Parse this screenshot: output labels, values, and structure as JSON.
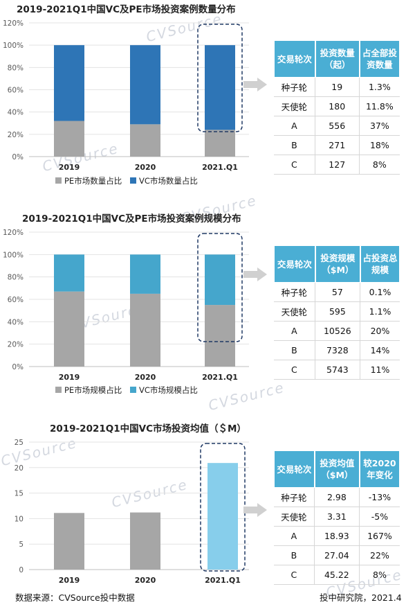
{
  "watermark": "CVSource",
  "chart_data": [
    {
      "type": "bar",
      "stacked": true,
      "title": "2019-2021Q1中国VC及PE市场投资案例数量分布",
      "categories": [
        "2019",
        "2020",
        "2021.Q1"
      ],
      "series": [
        {
          "name": "PE市场数量占比",
          "values": [
            32,
            29,
            24
          ],
          "color": "#a6a6a6"
        },
        {
          "name": "VC市场数量占比",
          "values": [
            68,
            71,
            76
          ],
          "color": "#2e75b6"
        }
      ],
      "ylim": [
        0,
        120
      ],
      "yticks": [
        "0%",
        "20%",
        "40%",
        "60%",
        "80%",
        "100%",
        "120%"
      ],
      "grid": true,
      "legend": "bottom",
      "highlight_category": "2021.Q1"
    },
    {
      "type": "bar",
      "stacked": true,
      "title": "2019-2021Q1中国VC及PE市场投资案例规模分布",
      "categories": [
        "2019",
        "2020",
        "2021.Q1"
      ],
      "series": [
        {
          "name": "PE市场规模占比",
          "values": [
            67,
            65,
            55
          ],
          "color": "#a6a6a6"
        },
        {
          "name": "VC市场规模占比",
          "values": [
            33,
            35,
            45
          ],
          "color": "#45a6cc"
        }
      ],
      "ylim": [
        0,
        120
      ],
      "yticks": [
        "0%",
        "20%",
        "40%",
        "60%",
        "80%",
        "100%",
        "120%"
      ],
      "grid": true,
      "legend": "bottom",
      "highlight_category": "2021.Q1"
    },
    {
      "type": "bar",
      "title": "2019-2021Q1中国VC市场投资均值（＄M）",
      "categories": [
        "2019",
        "2020",
        "2021.Q1"
      ],
      "values": [
        11.1,
        11.2,
        20.9
      ],
      "colors": [
        "#a6a6a6",
        "#a6a6a6",
        "#87ceeb"
      ],
      "ylim": [
        0,
        25
      ],
      "yticks": [
        "0",
        "5",
        "10",
        "15",
        "20",
        "25"
      ],
      "grid": true,
      "highlight_category": "2021.Q1"
    }
  ],
  "tables": [
    {
      "headers": [
        "交易轮次",
        "投资数量（起）",
        "占全部投资数量"
      ],
      "rows": [
        [
          "种子轮",
          "19",
          "1.3%"
        ],
        [
          "天使轮",
          "180",
          "11.8%"
        ],
        [
          "A",
          "556",
          "37%"
        ],
        [
          "B",
          "271",
          "18%"
        ],
        [
          "C",
          "127",
          "8%"
        ]
      ]
    },
    {
      "headers": [
        "交易轮次",
        "投资规模（$M）",
        "占投资总规模"
      ],
      "rows": [
        [
          "种子轮",
          "57",
          "0.1%"
        ],
        [
          "天使轮",
          "595",
          "1.1%"
        ],
        [
          "A",
          "10526",
          "20%"
        ],
        [
          "B",
          "7328",
          "14%"
        ],
        [
          "C",
          "5743",
          "11%"
        ]
      ]
    },
    {
      "headers": [
        "交易轮次",
        "投资均值（$M）",
        "较2020年变化"
      ],
      "rows": [
        [
          "种子轮",
          "2.98",
          "-13%"
        ],
        [
          "天使轮",
          "3.31",
          "-5%"
        ],
        [
          "A",
          "18.93",
          "167%"
        ],
        [
          "B",
          "27.04",
          "22%"
        ],
        [
          "C",
          "45.22",
          "8%"
        ]
      ]
    }
  ],
  "footer": {
    "source": "数据来源：CVSource投中数据",
    "credit": "投中研究院，2021.4"
  }
}
